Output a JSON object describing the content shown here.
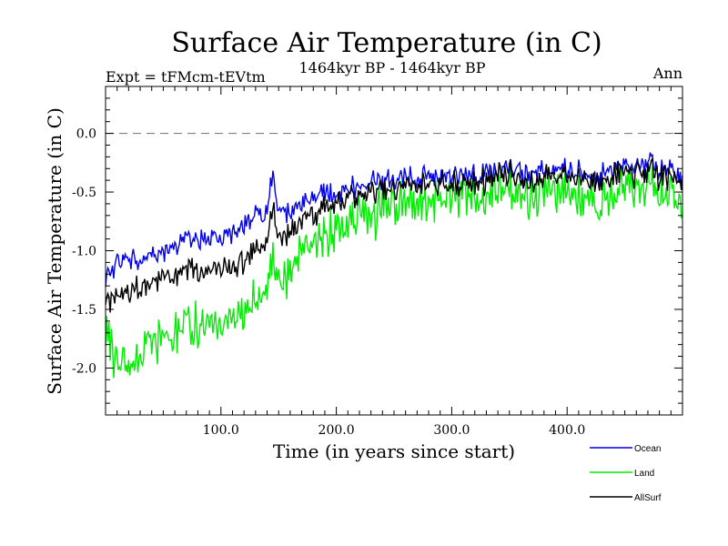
{
  "chart_data": {
    "type": "line",
    "title": "Surface Air Temperature (in C)",
    "subtitle_left": "Expt = tFMcm-tEVtm",
    "subtitle_center": "1464kyr BP - 1464kyr BP",
    "subtitle_right": "Ann",
    "xlabel": "Time (in years since start)",
    "ylabel": "Surface Air Temperature (in C)",
    "xlim": [
      0,
      500
    ],
    "ylim": [
      -2.4,
      0.4
    ],
    "xticks": [
      {
        "value": 100,
        "label": "100.0"
      },
      {
        "value": 200,
        "label": "200.0"
      },
      {
        "value": 300,
        "label": "300.0"
      },
      {
        "value": 400,
        "label": "400.0"
      }
    ],
    "yticks": [
      {
        "value": 0.0,
        "label": "0.0"
      },
      {
        "value": -0.5,
        "label": "-0.5"
      },
      {
        "value": -1.0,
        "label": "-1.0"
      },
      {
        "value": -1.5,
        "label": "-1.5"
      },
      {
        "value": -2.0,
        "label": "-2.0"
      }
    ],
    "reference_line": {
      "value": 0.0,
      "style": "dashed",
      "color": "#808080"
    },
    "series": [
      {
        "name": "Ocean",
        "color": "#0000ee",
        "x": [
          0,
          10,
          20,
          30,
          40,
          50,
          60,
          70,
          80,
          90,
          100,
          110,
          120,
          130,
          140,
          145,
          150,
          160,
          170,
          180,
          190,
          200,
          210,
          220,
          230,
          240,
          250,
          260,
          270,
          280,
          290,
          300,
          310,
          320,
          330,
          340,
          350,
          360,
          370,
          380,
          390,
          400,
          410,
          420,
          430,
          440,
          450,
          460,
          470,
          480,
          490,
          500
        ],
        "values": [
          -1.25,
          -1.1,
          -1.05,
          -1.1,
          -1.0,
          -1.0,
          -0.95,
          -0.92,
          -0.92,
          -0.9,
          -0.88,
          -0.85,
          -0.8,
          -0.72,
          -0.62,
          -0.35,
          -0.65,
          -0.68,
          -0.58,
          -0.55,
          -0.52,
          -0.5,
          -0.47,
          -0.45,
          -0.42,
          -0.4,
          -0.4,
          -0.38,
          -0.37,
          -0.38,
          -0.36,
          -0.35,
          -0.37,
          -0.36,
          -0.34,
          -0.3,
          -0.28,
          -0.33,
          -0.35,
          -0.32,
          -0.3,
          -0.3,
          -0.33,
          -0.35,
          -0.32,
          -0.3,
          -0.28,
          -0.3,
          -0.25,
          -0.32,
          -0.3,
          -0.35
        ]
      },
      {
        "name": "Land",
        "color": "#00ee00",
        "x": [
          0,
          10,
          20,
          30,
          40,
          50,
          60,
          70,
          80,
          90,
          100,
          110,
          120,
          130,
          140,
          145,
          150,
          160,
          170,
          180,
          190,
          200,
          210,
          220,
          230,
          240,
          250,
          260,
          270,
          280,
          290,
          300,
          310,
          320,
          330,
          340,
          350,
          360,
          370,
          380,
          390,
          400,
          410,
          420,
          430,
          440,
          450,
          460,
          470,
          480,
          490,
          500
        ],
        "values": [
          -1.7,
          -1.95,
          -2.0,
          -1.85,
          -1.8,
          -1.75,
          -1.7,
          -1.65,
          -1.65,
          -1.62,
          -1.6,
          -1.62,
          -1.55,
          -1.45,
          -1.3,
          -1.05,
          -1.3,
          -1.2,
          -1.0,
          -0.95,
          -0.9,
          -0.8,
          -0.75,
          -0.72,
          -0.7,
          -0.65,
          -0.62,
          -0.6,
          -0.6,
          -0.58,
          -0.55,
          -0.55,
          -0.57,
          -0.55,
          -0.52,
          -0.48,
          -0.45,
          -0.55,
          -0.6,
          -0.5,
          -0.45,
          -0.5,
          -0.55,
          -0.58,
          -0.52,
          -0.5,
          -0.48,
          -0.5,
          -0.42,
          -0.55,
          -0.5,
          -0.55
        ]
      },
      {
        "name": "AllSurf",
        "color": "#000000",
        "x": [
          0,
          10,
          20,
          30,
          40,
          50,
          60,
          70,
          80,
          90,
          100,
          110,
          120,
          130,
          140,
          145,
          150,
          160,
          170,
          180,
          190,
          200,
          210,
          220,
          230,
          240,
          250,
          260,
          270,
          280,
          290,
          300,
          310,
          320,
          330,
          340,
          350,
          360,
          370,
          380,
          390,
          400,
          410,
          420,
          430,
          440,
          450,
          460,
          470,
          480,
          490,
          500
        ],
        "values": [
          -1.4,
          -1.4,
          -1.38,
          -1.3,
          -1.25,
          -1.22,
          -1.2,
          -1.18,
          -1.18,
          -1.17,
          -1.15,
          -1.15,
          -1.1,
          -1.0,
          -0.88,
          -0.6,
          -0.88,
          -0.85,
          -0.72,
          -0.68,
          -0.64,
          -0.6,
          -0.56,
          -0.54,
          -0.52,
          -0.48,
          -0.47,
          -0.45,
          -0.45,
          -0.44,
          -0.42,
          -0.42,
          -0.44,
          -0.42,
          -0.4,
          -0.36,
          -0.33,
          -0.4,
          -0.43,
          -0.38,
          -0.35,
          -0.36,
          -0.4,
          -0.42,
          -0.38,
          -0.36,
          -0.34,
          -0.36,
          -0.3,
          -0.38,
          -0.36,
          -0.4
        ]
      }
    ],
    "legend": {
      "placement": "bottom-right",
      "entries": [
        "Ocean",
        "Land",
        "AllSurf"
      ]
    }
  }
}
